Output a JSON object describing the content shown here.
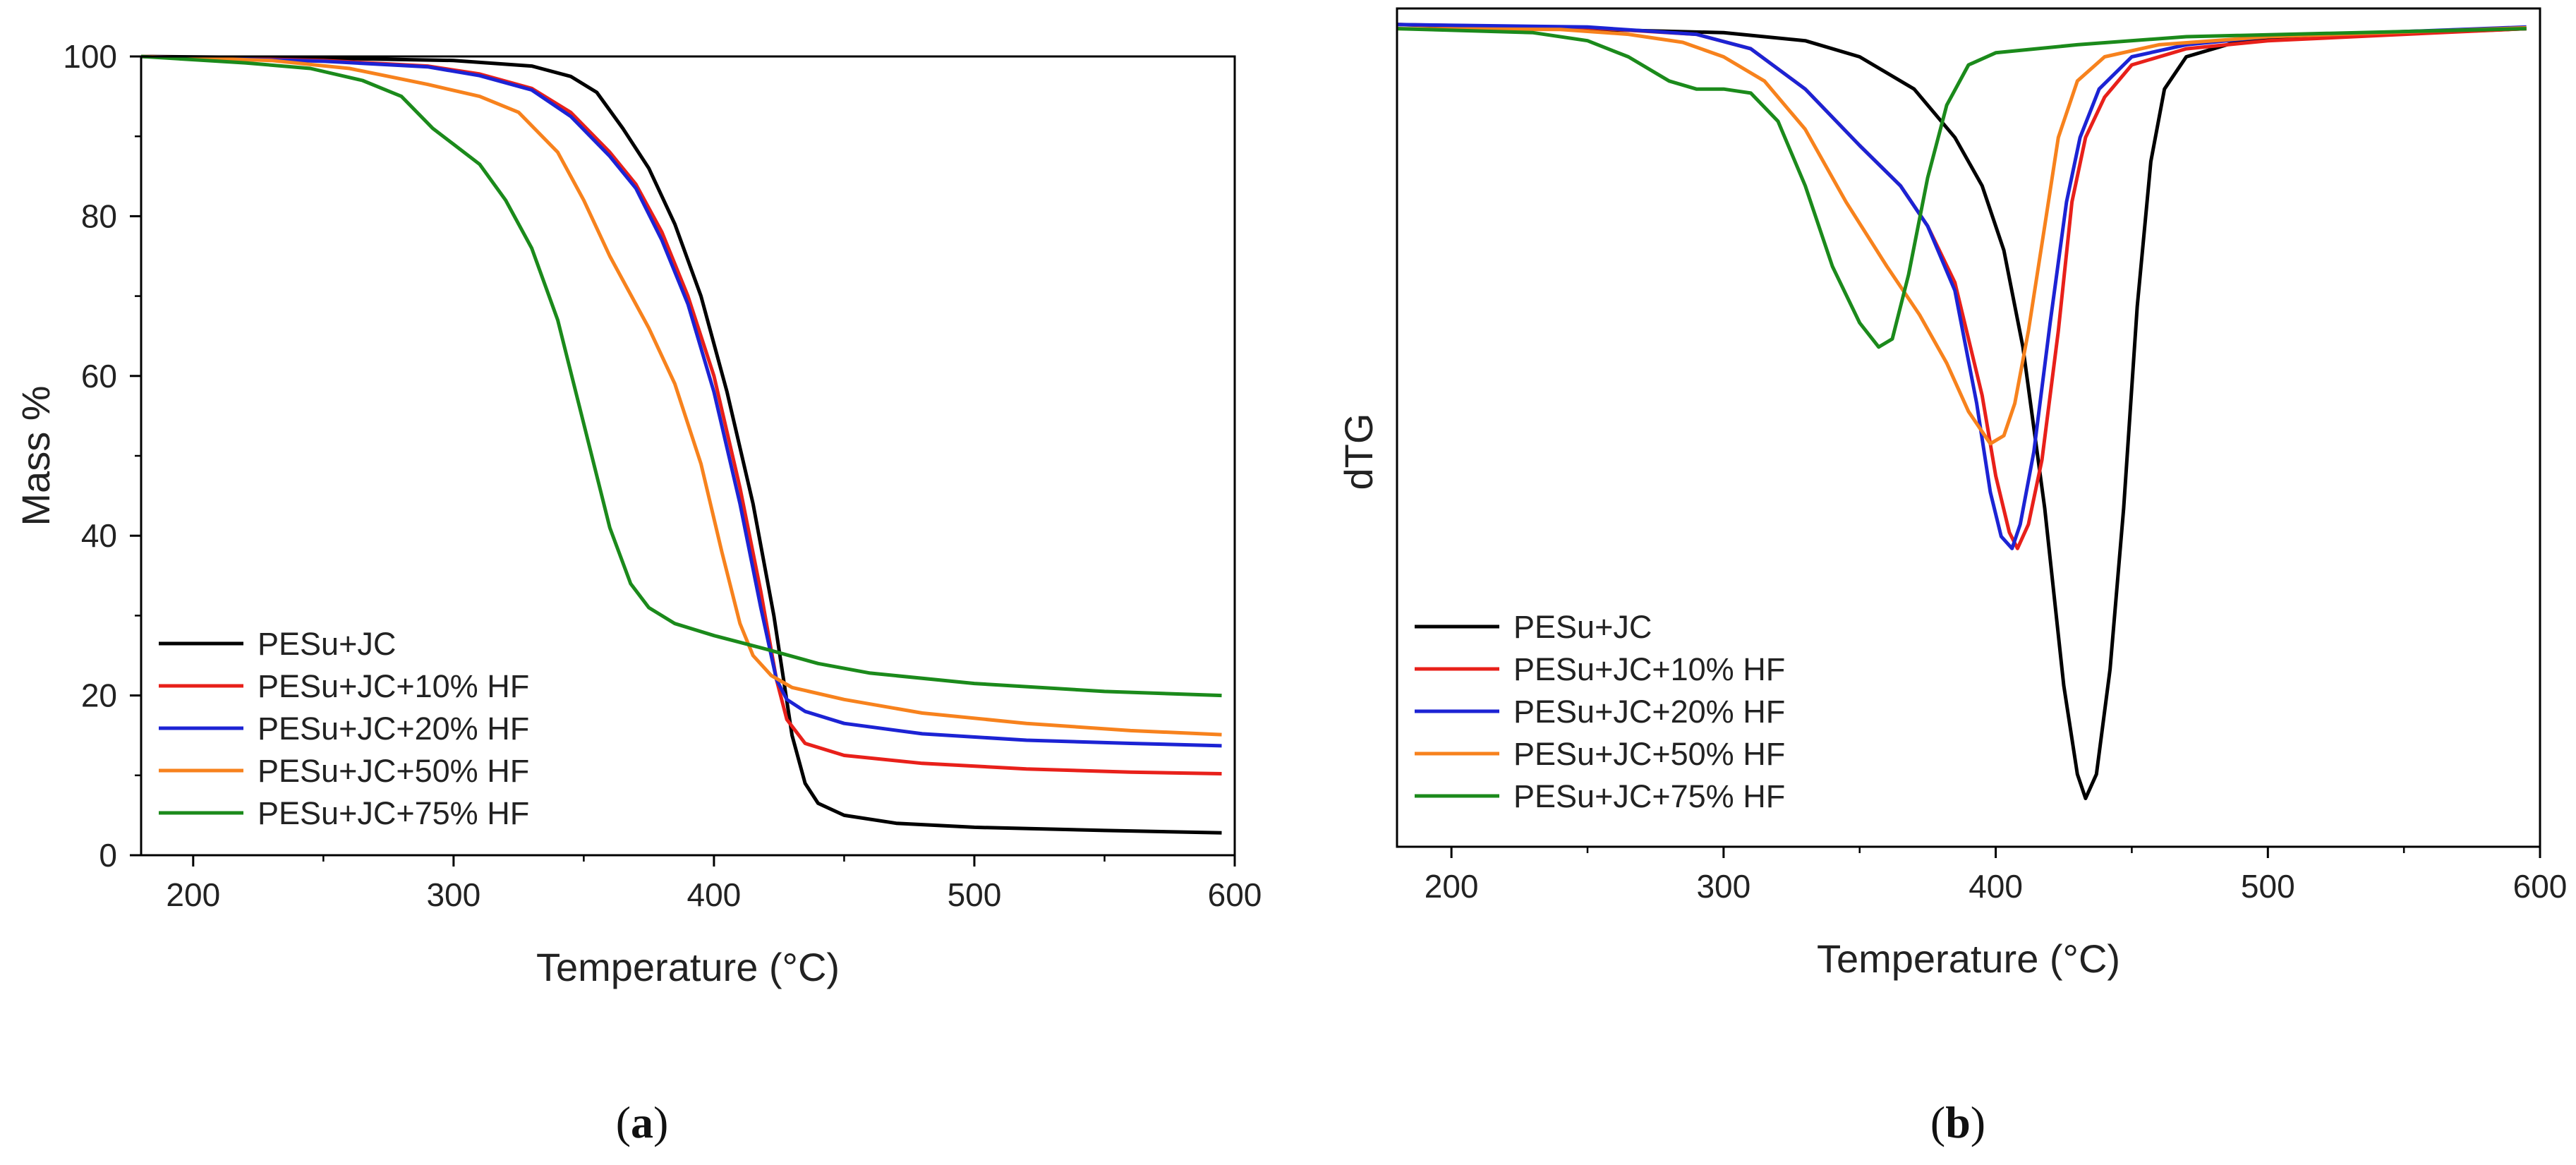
{
  "chart_data": [
    {
      "type": "line",
      "panel": "a",
      "panel_label": "a",
      "title": "",
      "xlabel": "Temperature (°C)",
      "ylabel": "Mass %",
      "xlim": [
        180,
        600
      ],
      "ylim": [
        0,
        100
      ],
      "xticks": [
        200,
        300,
        400,
        500,
        600
      ],
      "yticks": [
        0,
        20,
        40,
        60,
        80,
        100
      ],
      "legend_position": "bottom-left",
      "series": [
        {
          "name": "PESu+JC",
          "color": "#000000",
          "points": [
            [
              180,
              100
            ],
            [
              250,
              99.8
            ],
            [
              300,
              99.5
            ],
            [
              330,
              98.8
            ],
            [
              345,
              97.5
            ],
            [
              355,
              95.5
            ],
            [
              365,
              91
            ],
            [
              375,
              86
            ],
            [
              385,
              79
            ],
            [
              395,
              70
            ],
            [
              405,
              58
            ],
            [
              415,
              44
            ],
            [
              423,
              30
            ],
            [
              430,
              15
            ],
            [
              435,
              9
            ],
            [
              440,
              6.5
            ],
            [
              450,
              5
            ],
            [
              470,
              4
            ],
            [
              500,
              3.5
            ],
            [
              550,
              3.1
            ],
            [
              595,
              2.8
            ]
          ]
        },
        {
          "name": "PESu+JC+10% HF",
          "color": "#e8201a",
          "points": [
            [
              180,
              100
            ],
            [
              250,
              99.5
            ],
            [
              290,
              98.8
            ],
            [
              310,
              97.8
            ],
            [
              330,
              96
            ],
            [
              345,
              93
            ],
            [
              360,
              88
            ],
            [
              370,
              84
            ],
            [
              380,
              78
            ],
            [
              390,
              70
            ],
            [
              400,
              60
            ],
            [
              410,
              46
            ],
            [
              418,
              33
            ],
            [
              424,
              22
            ],
            [
              428,
              17
            ],
            [
              435,
              14
            ],
            [
              450,
              12.5
            ],
            [
              480,
              11.5
            ],
            [
              520,
              10.8
            ],
            [
              560,
              10.4
            ],
            [
              595,
              10.2
            ]
          ]
        },
        {
          "name": "PESu+JC+20% HF",
          "color": "#1c23d4",
          "points": [
            [
              180,
              100
            ],
            [
              250,
              99.4
            ],
            [
              290,
              98.7
            ],
            [
              310,
              97.6
            ],
            [
              330,
              95.8
            ],
            [
              345,
              92.5
            ],
            [
              360,
              87.5
            ],
            [
              370,
              83.5
            ],
            [
              380,
              77
            ],
            [
              390,
              69
            ],
            [
              400,
              58
            ],
            [
              410,
              44
            ],
            [
              418,
              31
            ],
            [
              424,
              22
            ],
            [
              428,
              19.5
            ],
            [
              435,
              18
            ],
            [
              450,
              16.5
            ],
            [
              480,
              15.2
            ],
            [
              520,
              14.4
            ],
            [
              560,
              14
            ],
            [
              595,
              13.7
            ]
          ]
        },
        {
          "name": "PESu+JC+50% HF",
          "color": "#f7821d",
          "points": [
            [
              180,
              100
            ],
            [
              230,
              99.5
            ],
            [
              260,
              98.5
            ],
            [
              290,
              96.5
            ],
            [
              310,
              95
            ],
            [
              325,
              93
            ],
            [
              340,
              88
            ],
            [
              350,
              82
            ],
            [
              360,
              75
            ],
            [
              375,
              66
            ],
            [
              385,
              59
            ],
            [
              395,
              49
            ],
            [
              403,
              38
            ],
            [
              410,
              29
            ],
            [
              415,
              25
            ],
            [
              422,
              22.5
            ],
            [
              430,
              21
            ],
            [
              450,
              19.5
            ],
            [
              480,
              17.8
            ],
            [
              520,
              16.5
            ],
            [
              560,
              15.6
            ],
            [
              595,
              15.1
            ]
          ]
        },
        {
          "name": "PESu+JC+75% HF",
          "color": "#1b8a1b",
          "points": [
            [
              180,
              100
            ],
            [
              220,
              99.2
            ],
            [
              245,
              98.5
            ],
            [
              265,
              97
            ],
            [
              280,
              95
            ],
            [
              292,
              91
            ],
            [
              300,
              89
            ],
            [
              310,
              86.5
            ],
            [
              320,
              82
            ],
            [
              330,
              76
            ],
            [
              340,
              67
            ],
            [
              350,
              54
            ],
            [
              360,
              41
            ],
            [
              368,
              34
            ],
            [
              375,
              31
            ],
            [
              385,
              29
            ],
            [
              400,
              27.5
            ],
            [
              420,
              25.8
            ],
            [
              440,
              24
            ],
            [
              460,
              22.8
            ],
            [
              500,
              21.5
            ],
            [
              550,
              20.5
            ],
            [
              595,
              20
            ]
          ]
        }
      ]
    },
    {
      "type": "line",
      "panel": "b",
      "panel_label": "b",
      "title": "",
      "xlabel": "Temperature (°C)",
      "ylabel": "dTG",
      "xlim": [
        180,
        600
      ],
      "ylim": [
        -1.02,
        0.02
      ],
      "xticks": [
        200,
        300,
        400,
        500,
        600
      ],
      "yticks": [],
      "legend_position": "bottom-left",
      "series": [
        {
          "name": "PESu+JC",
          "color": "#000000",
          "points": [
            [
              180,
              0
            ],
            [
              300,
              -0.01
            ],
            [
              330,
              -0.02
            ],
            [
              350,
              -0.04
            ],
            [
              370,
              -0.08
            ],
            [
              385,
              -0.14
            ],
            [
              395,
              -0.2
            ],
            [
              403,
              -0.28
            ],
            [
              410,
              -0.4
            ],
            [
              418,
              -0.6
            ],
            [
              425,
              -0.82
            ],
            [
              430,
              -0.93
            ],
            [
              433,
              -0.96
            ],
            [
              437,
              -0.93
            ],
            [
              442,
              -0.8
            ],
            [
              447,
              -0.6
            ],
            [
              452,
              -0.35
            ],
            [
              457,
              -0.17
            ],
            [
              462,
              -0.08
            ],
            [
              470,
              -0.04
            ],
            [
              490,
              -0.02
            ],
            [
              595,
              -0.005
            ]
          ]
        },
        {
          "name": "PESu+JC+10% HF",
          "color": "#e8201a",
          "points": [
            [
              180,
              0
            ],
            [
              250,
              -0.004
            ],
            [
              290,
              -0.012
            ],
            [
              310,
              -0.03
            ],
            [
              330,
              -0.08
            ],
            [
              350,
              -0.15
            ],
            [
              365,
              -0.2
            ],
            [
              375,
              -0.25
            ],
            [
              385,
              -0.32
            ],
            [
              395,
              -0.46
            ],
            [
              400,
              -0.56
            ],
            [
              405,
              -0.63
            ],
            [
              408,
              -0.65
            ],
            [
              412,
              -0.62
            ],
            [
              417,
              -0.54
            ],
            [
              423,
              -0.38
            ],
            [
              428,
              -0.22
            ],
            [
              433,
              -0.14
            ],
            [
              440,
              -0.09
            ],
            [
              450,
              -0.05
            ],
            [
              470,
              -0.03
            ],
            [
              500,
              -0.02
            ],
            [
              595,
              -0.005
            ]
          ]
        },
        {
          "name": "PESu+JC+20% HF",
          "color": "#1c23d4",
          "points": [
            [
              180,
              0
            ],
            [
              250,
              -0.003
            ],
            [
              290,
              -0.012
            ],
            [
              310,
              -0.03
            ],
            [
              330,
              -0.08
            ],
            [
              350,
              -0.15
            ],
            [
              365,
              -0.2
            ],
            [
              375,
              -0.25
            ],
            [
              385,
              -0.33
            ],
            [
              393,
              -0.47
            ],
            [
              398,
              -0.58
            ],
            [
              402,
              -0.635
            ],
            [
              406,
              -0.65
            ],
            [
              409,
              -0.62
            ],
            [
              414,
              -0.53
            ],
            [
              420,
              -0.37
            ],
            [
              426,
              -0.22
            ],
            [
              431,
              -0.14
            ],
            [
              438,
              -0.08
            ],
            [
              450,
              -0.04
            ],
            [
              470,
              -0.025
            ],
            [
              500,
              -0.015
            ],
            [
              595,
              -0.003
            ]
          ]
        },
        {
          "name": "PESu+JC+50% HF",
          "color": "#f7821d",
          "points": [
            [
              180,
              -0.005
            ],
            [
              240,
              -0.006
            ],
            [
              265,
              -0.012
            ],
            [
              285,
              -0.022
            ],
            [
              300,
              -0.04
            ],
            [
              315,
              -0.07
            ],
            [
              330,
              -0.13
            ],
            [
              345,
              -0.22
            ],
            [
              360,
              -0.3
            ],
            [
              372,
              -0.36
            ],
            [
              382,
              -0.42
            ],
            [
              390,
              -0.48
            ],
            [
              398,
              -0.52
            ],
            [
              403,
              -0.51
            ],
            [
              407,
              -0.47
            ],
            [
              412,
              -0.38
            ],
            [
              418,
              -0.25
            ],
            [
              423,
              -0.14
            ],
            [
              430,
              -0.07
            ],
            [
              440,
              -0.04
            ],
            [
              460,
              -0.025
            ],
            [
              500,
              -0.015
            ],
            [
              595,
              -0.004
            ]
          ]
        },
        {
          "name": "PESu+JC+75% HF",
          "color": "#1b8a1b",
          "points": [
            [
              180,
              -0.005
            ],
            [
              230,
              -0.01
            ],
            [
              250,
              -0.02
            ],
            [
              265,
              -0.04
            ],
            [
              280,
              -0.07
            ],
            [
              290,
              -0.08
            ],
            [
              300,
              -0.08
            ],
            [
              310,
              -0.085
            ],
            [
              320,
              -0.12
            ],
            [
              330,
              -0.2
            ],
            [
              340,
              -0.3
            ],
            [
              350,
              -0.37
            ],
            [
              357,
              -0.4
            ],
            [
              362,
              -0.39
            ],
            [
              368,
              -0.31
            ],
            [
              375,
              -0.19
            ],
            [
              382,
              -0.1
            ],
            [
              390,
              -0.05
            ],
            [
              400,
              -0.035
            ],
            [
              430,
              -0.025
            ],
            [
              470,
              -0.015
            ],
            [
              595,
              -0.005
            ]
          ]
        }
      ]
    }
  ]
}
